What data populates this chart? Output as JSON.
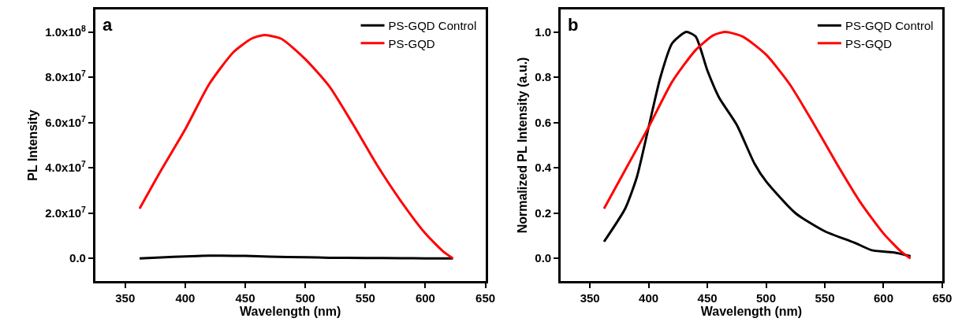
{
  "chart_data": [
    {
      "type": "line",
      "ylabel": "PL Intensity",
      "xlabel": "Wavelength (nm)",
      "annotations": [
        "a"
      ],
      "legend": "top right",
      "xlim": [
        325,
        650
      ],
      "xticks": [
        350,
        400,
        450,
        500,
        550,
        600,
        650
      ],
      "ylim": [
        -10000000,
        110000000
      ],
      "yticks": [
        {
          "value": 0,
          "label": "0.0"
        },
        {
          "value": 20000000,
          "label": "2.0x10$^{7}$"
        },
        {
          "value": 40000000,
          "label": "4.0x10$^{7}$"
        },
        {
          "value": 60000000,
          "label": "6.0x10$^{7}$"
        },
        {
          "value": 80000000,
          "label": "8.0x10$^{7}$"
        },
        {
          "value": 100000000,
          "label": "1.0x10$^{8}$"
        }
      ],
      "series": [
        {
          "name": "PS-GQD Control",
          "color": "#000000",
          "x": [
            362,
            380,
            400,
            420,
            430,
            450,
            470,
            500,
            520,
            550,
            580,
            600,
            623
          ],
          "values": [
            0,
            400000,
            900000,
            1200000,
            1200000,
            1100000,
            800000,
            500000,
            300000,
            200000,
            100000,
            0,
            0
          ]
        },
        {
          "name": "PS-GQD",
          "color": "#ff0000",
          "x": [
            362,
            380,
            400,
            420,
            440,
            455,
            465,
            480,
            500,
            520,
            540,
            560,
            580,
            600,
            615,
            623
          ],
          "values": [
            22000000,
            39000000,
            57000000,
            77000000,
            91000000,
            97000000,
            98600000,
            97000000,
            88000000,
            76000000,
            59000000,
            41000000,
            25000000,
            11000000,
            3000000,
            0
          ]
        }
      ]
    },
    {
      "type": "line",
      "ylabel": "Normalized PL Intensity (a.u.)",
      "xlabel": "Wavelength (nm)",
      "annotations": [
        "b"
      ],
      "legend": "top right",
      "xlim": [
        325,
        650
      ],
      "xticks": [
        350,
        400,
        450,
        500,
        550,
        600,
        650
      ],
      "ylim": [
        -0.1,
        1.1
      ],
      "yticks": [
        {
          "value": 0,
          "label": "0.0"
        },
        {
          "value": 0.2,
          "label": "0.2"
        },
        {
          "value": 0.4,
          "label": "0.4"
        },
        {
          "value": 0.6,
          "label": "0.6"
        },
        {
          "value": 0.8,
          "label": "0.8"
        },
        {
          "value": 1,
          "label": "1.0"
        }
      ],
      "series": [
        {
          "name": "PS-GQD Control",
          "color": "#000000",
          "x": [
            362,
            380,
            390,
            400,
            410,
            420,
            432,
            440,
            450,
            460,
            475,
            490,
            500,
            525,
            550,
            575,
            590,
            600,
            610,
            623
          ],
          "values": [
            0.074,
            0.22,
            0.36,
            0.58,
            0.8,
            0.95,
            1.0,
            0.98,
            0.83,
            0.71,
            0.59,
            0.42,
            0.34,
            0.2,
            0.12,
            0.07,
            0.036,
            0.03,
            0.025,
            0.01
          ]
        },
        {
          "name": "PS-GQD",
          "color": "#ff0000",
          "x": [
            362,
            380,
            400,
            420,
            440,
            455,
            465,
            480,
            500,
            520,
            540,
            560,
            580,
            600,
            615,
            623
          ],
          "values": [
            0.22,
            0.39,
            0.58,
            0.78,
            0.92,
            0.985,
            1.0,
            0.98,
            0.9,
            0.77,
            0.6,
            0.42,
            0.25,
            0.11,
            0.03,
            0.0
          ]
        }
      ]
    }
  ]
}
